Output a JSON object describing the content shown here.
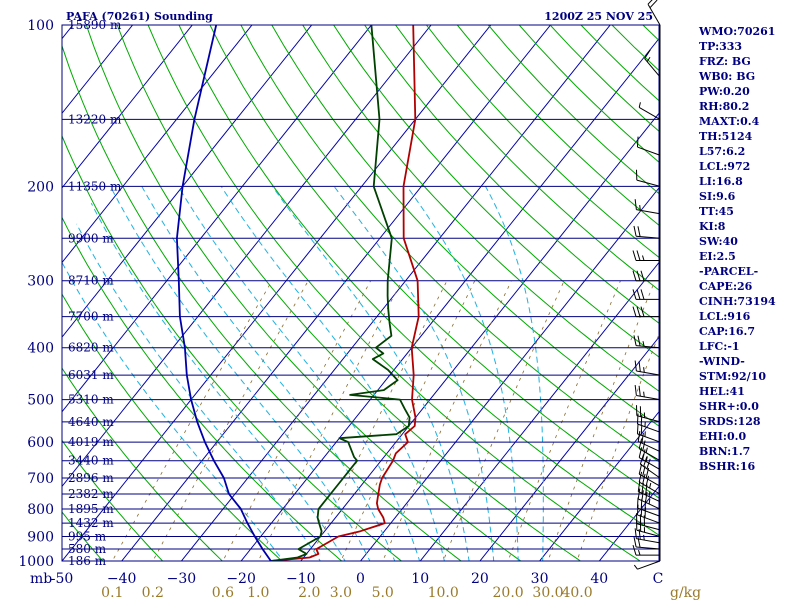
{
  "chart_data": {
    "type": "line",
    "title_left": "PAFA (70261) Sounding",
    "title_right": "1200Z 25 NOV 25",
    "pressure_axis": {
      "unit_label": "mb",
      "ticks": [
        100,
        200,
        300,
        400,
        500,
        600,
        700,
        800,
        900,
        1000
      ],
      "range": [
        100,
        1000
      ],
      "scale": "log"
    },
    "temperature_axis": {
      "ticks": [
        -50,
        -40,
        -30,
        -20,
        -10,
        0,
        10,
        20,
        30,
        40
      ],
      "tick_labels": [
        "-50",
        "−40",
        "−30",
        "−20",
        "−10",
        "0",
        "10",
        "20",
        "30",
        "40"
      ],
      "unit_label": "C",
      "range": [
        -50,
        50
      ]
    },
    "mixing_ratio_labels": [
      "0.1",
      "0.2",
      "0.6",
      "1.0",
      "2.0",
      "3.0",
      "5.0",
      "10.0",
      "20.0",
      "30.0",
      "40.0"
    ],
    "mixing_ratio_unit": "g/kg",
    "height_labels": [
      {
        "p": 100,
        "label": "15890 m"
      },
      {
        "p": 150,
        "label": "13220 m"
      },
      {
        "p": 200,
        "label": "11350 m"
      },
      {
        "p": 250,
        "label": "9900 m"
      },
      {
        "p": 300,
        "label": "8710 m"
      },
      {
        "p": 350,
        "label": "7700 m"
      },
      {
        "p": 400,
        "label": "6820 m"
      },
      {
        "p": 450,
        "label": "6031 m"
      },
      {
        "p": 500,
        "label": "5310 m"
      },
      {
        "p": 550,
        "label": "4640 m"
      },
      {
        "p": 600,
        "label": "4019 m"
      },
      {
        "p": 650,
        "label": "3440 m"
      },
      {
        "p": 700,
        "label": "2896 m"
      },
      {
        "p": 750,
        "label": "2382 m"
      },
      {
        "p": 800,
        "label": "1895 m"
      },
      {
        "p": 850,
        "label": "1432 m"
      },
      {
        "p": 900,
        "label": "995 m"
      },
      {
        "p": 950,
        "label": "580 m"
      },
      {
        "p": 1000,
        "label": "186 m"
      }
    ],
    "series": [
      {
        "color": "#b00000",
        "points": [
          [
            1000,
            -15
          ],
          [
            985,
            -9
          ],
          [
            970,
            -8
          ],
          [
            950,
            -9
          ],
          [
            925,
            -8
          ],
          [
            900,
            -7
          ],
          [
            880,
            -4
          ],
          [
            850,
            -1
          ],
          [
            830,
            -2
          ],
          [
            800,
            -4
          ],
          [
            780,
            -5
          ],
          [
            750,
            -6
          ],
          [
            720,
            -7
          ],
          [
            700,
            -7.5
          ],
          [
            650,
            -8
          ],
          [
            630,
            -8.5
          ],
          [
            600,
            -8
          ],
          [
            580,
            -9.5
          ],
          [
            560,
            -9
          ],
          [
            540,
            -10
          ],
          [
            500,
            -13
          ],
          [
            450,
            -16
          ],
          [
            400,
            -20
          ],
          [
            350,
            -23
          ],
          [
            300,
            -28
          ],
          [
            250,
            -36
          ],
          [
            200,
            -43
          ],
          [
            150,
            -50
          ],
          [
            100,
            -63
          ]
        ]
      },
      {
        "color": "#004000",
        "points": [
          [
            1000,
            -15
          ],
          [
            985,
            -11
          ],
          [
            970,
            -10
          ],
          [
            950,
            -12
          ],
          [
            925,
            -11
          ],
          [
            900,
            -10
          ],
          [
            880,
            -10.5
          ],
          [
            850,
            -12
          ],
          [
            830,
            -13
          ],
          [
            800,
            -14
          ],
          [
            780,
            -14
          ],
          [
            750,
            -14
          ],
          [
            720,
            -14
          ],
          [
            700,
            -14
          ],
          [
            650,
            -14
          ],
          [
            640,
            -15
          ],
          [
            600,
            -18
          ],
          [
            590,
            -20
          ],
          [
            580,
            -11
          ],
          [
            560,
            -10
          ],
          [
            540,
            -11
          ],
          [
            520,
            -13
          ],
          [
            500,
            -15
          ],
          [
            490,
            -24
          ],
          [
            480,
            -19
          ],
          [
            460,
            -18
          ],
          [
            440,
            -21
          ],
          [
            420,
            -25
          ],
          [
            410,
            -24
          ],
          [
            400,
            -26
          ],
          [
            380,
            -25
          ],
          [
            360,
            -27
          ],
          [
            340,
            -29
          ],
          [
            320,
            -31
          ],
          [
            300,
            -33
          ],
          [
            250,
            -38
          ],
          [
            200,
            -48
          ],
          [
            150,
            -56
          ],
          [
            100,
            -70
          ]
        ]
      },
      {
        "color": "#0000aa",
        "points": [
          [
            1000,
            -15
          ],
          [
            950,
            -18
          ],
          [
            900,
            -21
          ],
          [
            850,
            -24
          ],
          [
            800,
            -27
          ],
          [
            750,
            -31
          ],
          [
            700,
            -34
          ],
          [
            650,
            -38
          ],
          [
            600,
            -42
          ],
          [
            550,
            -46
          ],
          [
            500,
            -50
          ],
          [
            450,
            -54
          ],
          [
            400,
            -58
          ],
          [
            350,
            -63
          ],
          [
            300,
            -68
          ],
          [
            250,
            -74
          ],
          [
            200,
            -80
          ],
          [
            150,
            -87
          ],
          [
            100,
            -96
          ]
        ]
      }
    ],
    "wind_barbs": [
      {
        "p": 1000,
        "dir": 250,
        "spd": 5
      },
      {
        "p": 975,
        "dir": 270,
        "spd": 15
      },
      {
        "p": 950,
        "dir": 275,
        "spd": 20
      },
      {
        "p": 925,
        "dir": 280,
        "spd": 25
      },
      {
        "p": 900,
        "dir": 285,
        "spd": 25
      },
      {
        "p": 875,
        "dir": 285,
        "spd": 30
      },
      {
        "p": 850,
        "dir": 290,
        "spd": 30
      },
      {
        "p": 825,
        "dir": 290,
        "spd": 30
      },
      {
        "p": 800,
        "dir": 295,
        "spd": 35
      },
      {
        "p": 775,
        "dir": 295,
        "spd": 35
      },
      {
        "p": 750,
        "dir": 300,
        "spd": 35
      },
      {
        "p": 725,
        "dir": 300,
        "spd": 30
      },
      {
        "p": 700,
        "dir": 305,
        "spd": 30
      },
      {
        "p": 675,
        "dir": 300,
        "spd": 25
      },
      {
        "p": 650,
        "dir": 300,
        "spd": 25
      },
      {
        "p": 625,
        "dir": 295,
        "spd": 20
      },
      {
        "p": 600,
        "dir": 290,
        "spd": 25
      },
      {
        "p": 575,
        "dir": 290,
        "spd": 25
      },
      {
        "p": 550,
        "dir": 285,
        "spd": 25
      },
      {
        "p": 500,
        "dir": 280,
        "spd": 25
      },
      {
        "p": 450,
        "dir": 280,
        "spd": 25
      },
      {
        "p": 400,
        "dir": 275,
        "spd": 25
      },
      {
        "p": 350,
        "dir": 270,
        "spd": 30
      },
      {
        "p": 325,
        "dir": 270,
        "spd": 30
      },
      {
        "p": 300,
        "dir": 270,
        "spd": 30
      },
      {
        "p": 275,
        "dir": 270,
        "spd": 25
      },
      {
        "p": 250,
        "dir": 275,
        "spd": 20
      },
      {
        "p": 225,
        "dir": 280,
        "spd": 15
      },
      {
        "p": 200,
        "dir": 285,
        "spd": 10
      },
      {
        "p": 175,
        "dir": 290,
        "spd": 10
      },
      {
        "p": 150,
        "dir": 300,
        "spd": 5
      },
      {
        "p": 125,
        "dir": 320,
        "spd": 15
      },
      {
        "p": 100,
        "dir": 330,
        "spd": 20
      }
    ],
    "indices": [
      "WMO:70261",
      "TP:333",
      "FRZ: BG",
      "WB0: BG",
      "PW:0.20",
      "RH:80.2",
      "MAXT:0.4",
      "TH:5124",
      "L57:6.2",
      "LCL:972",
      "LI:16.8",
      "SI:9.6",
      "TT:45",
      "KI:8",
      "SW:40",
      "EI:2.5",
      "-PARCEL-",
      "CAPE:26",
      "CINH:73194",
      "LCL:916",
      "CAP:16.7",
      "LFC:-1",
      "-WIND-",
      "STM:92/10",
      "HEL:41",
      "SHR+:0.0",
      "SRDS:128",
      "EHI:0.0",
      "BRN:1.7",
      "BSHR:16"
    ],
    "colors": {
      "isobar": "#000080",
      "isotherm": "#0000aa",
      "dry_adiabat": "#00aa00",
      "moist_adiabat": "#1fb3e0",
      "mixing_ratio": "#8a6a2a",
      "temperature": "#b00000",
      "dewpoint": "#004000",
      "parcel": "#0000aa",
      "text": "#000080",
      "mixing_label": "#9a7a2a"
    }
  }
}
